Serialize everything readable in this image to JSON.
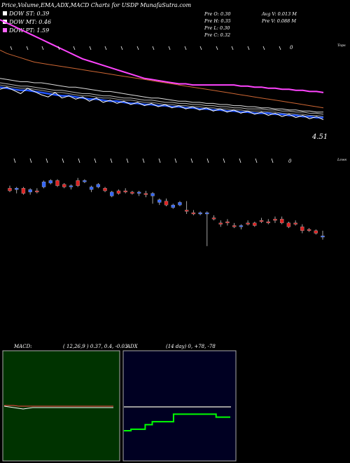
{
  "chart_data": [
    {
      "type": "line",
      "title": "Price,Volume,EMA,ADX,MACD Charts for USDP MunafaSutra.com",
      "legend": [
        {
          "label": "DOW ST: 0.39",
          "color": "#ffffff"
        },
        {
          "label": "DOW MT: 0.46",
          "color": "#ffffff"
        },
        {
          "label": "DOW PT: 1.59",
          "color": "#ff66ff"
        }
      ],
      "stats": [
        "Pre O: 0.30",
        "Pre H: 0.35",
        "Pre L: 0.30",
        "Pre C: 0.32",
        "Avg V: 0.013 M",
        "Pre V: 0.088 M"
      ],
      "price_label": "4.51",
      "axis_note": "Tops",
      "markers": [
        "0"
      ],
      "series": [
        {
          "color": "#ff44ff",
          "values": [
            98,
            95,
            92,
            89,
            86,
            83,
            80,
            77,
            74,
            71,
            68,
            65,
            62,
            60,
            58,
            56,
            54,
            52,
            50,
            48,
            46,
            44,
            43,
            42,
            41,
            40,
            39,
            39,
            38,
            38,
            38,
            38,
            38,
            38,
            38,
            37,
            37,
            36,
            36,
            35,
            35,
            34,
            34,
            33,
            33,
            32,
            32,
            31
          ]
        },
        {
          "color": "#cc6633",
          "values": [
            70,
            67,
            65,
            63,
            61,
            59,
            58,
            57,
            56,
            55,
            54,
            53,
            52,
            51,
            50,
            49,
            48,
            47,
            46,
            45,
            44,
            43,
            42,
            41,
            40,
            39,
            38,
            37,
            36,
            35,
            34,
            33,
            32,
            31,
            30,
            29,
            28,
            27,
            26,
            25,
            24,
            23,
            22,
            21,
            20,
            19,
            18,
            17
          ]
        },
        {
          "color": "#dddddd",
          "values": [
            44,
            43,
            42,
            41,
            41,
            40,
            40,
            39,
            38,
            37,
            36,
            36,
            35,
            34,
            33,
            32,
            32,
            31,
            30,
            29,
            28,
            27,
            26,
            26,
            25,
            24,
            23,
            23,
            22,
            22,
            21,
            21,
            20,
            20,
            19,
            19,
            18,
            18,
            17,
            17,
            16,
            16,
            15,
            15,
            14,
            14,
            13,
            13
          ]
        },
        {
          "color": "#bbbbbb",
          "values": [
            40,
            39,
            38,
            37,
            37,
            36,
            35,
            34,
            33,
            33,
            32,
            31,
            30,
            30,
            29,
            28,
            28,
            27,
            26,
            26,
            25,
            24,
            24,
            23,
            22,
            22,
            21,
            21,
            20,
            20,
            19,
            19,
            18,
            18,
            17,
            17,
            16,
            16,
            16,
            15,
            15,
            14,
            14,
            13,
            13,
            12,
            12,
            11
          ]
        },
        {
          "color": "#999999",
          "values": [
            38,
            37,
            36,
            35,
            35,
            34,
            33,
            32,
            31,
            31,
            30,
            29,
            28,
            28,
            27,
            26,
            26,
            25,
            24,
            24,
            23,
            22,
            22,
            21,
            20,
            20,
            19,
            19,
            18,
            18,
            17,
            17,
            16,
            16,
            15,
            15,
            14,
            14,
            14,
            13,
            13,
            12,
            12,
            11,
            11,
            10,
            10,
            9
          ]
        },
        {
          "color": "#2255ff",
          "values": [
            36,
            35,
            34,
            33,
            33,
            32,
            31,
            30,
            29,
            28,
            28,
            27,
            26,
            25,
            25,
            24,
            23,
            23,
            22,
            21,
            21,
            20,
            20,
            19,
            19,
            18,
            18,
            17,
            17,
            16,
            16,
            15,
            15,
            14,
            14,
            13,
            13,
            12,
            12,
            12,
            11,
            11,
            10,
            10,
            9,
            9,
            8,
            8
          ]
        },
        {
          "color": "#ffffff",
          "values": [
            34,
            36,
            33,
            30,
            35,
            32,
            29,
            27,
            31,
            26,
            28,
            25,
            27,
            23,
            26,
            22,
            24,
            21,
            23,
            20,
            22,
            19,
            21,
            18,
            20,
            17,
            19,
            16,
            18,
            15,
            17,
            14,
            16,
            13,
            15,
            12,
            14,
            11,
            13,
            10,
            12,
            9,
            11,
            8,
            10,
            7,
            9,
            6
          ]
        }
      ]
    },
    {
      "type": "candlestick",
      "axis_note": "Lows",
      "markers": [
        "0"
      ],
      "candles": [
        [
          60,
          62,
          57,
          58
        ],
        [
          59,
          61,
          56,
          60
        ],
        [
          60,
          61,
          55,
          56
        ],
        [
          57,
          60,
          55,
          59
        ],
        [
          58,
          60,
          56,
          57
        ],
        [
          61,
          66,
          60,
          65
        ],
        [
          64,
          67,
          63,
          66
        ],
        [
          66,
          67,
          61,
          62
        ],
        [
          63,
          64,
          60,
          61
        ],
        [
          61,
          63,
          59,
          62
        ],
        [
          66,
          68,
          61,
          62
        ],
        [
          65,
          67,
          64,
          66
        ],
        [
          59,
          62,
          57,
          61
        ],
        [
          61,
          64,
          60,
          63
        ],
        [
          60,
          61,
          57,
          58
        ],
        [
          54,
          58,
          53,
          57
        ],
        [
          58,
          59,
          55,
          56
        ],
        [
          58,
          60,
          56,
          57
        ],
        [
          57,
          58,
          55,
          56
        ],
        [
          56,
          58,
          54,
          57
        ],
        [
          56,
          58,
          53,
          55
        ],
        [
          54,
          57,
          48,
          56
        ],
        [
          49,
          52,
          47,
          51
        ],
        [
          50,
          52,
          46,
          47
        ],
        [
          45,
          48,
          44,
          47
        ],
        [
          47,
          50,
          46,
          49
        ],
        [
          43,
          50,
          40,
          42
        ],
        [
          41,
          43,
          39,
          40
        ],
        [
          40,
          42,
          39,
          41
        ],
        [
          40,
          42,
          15,
          41
        ],
        [
          37,
          39,
          35,
          36
        ],
        [
          33,
          35,
          30,
          32
        ],
        [
          34,
          36,
          31,
          33
        ],
        [
          31,
          33,
          29,
          30
        ],
        [
          30,
          32,
          28,
          31
        ],
        [
          33,
          35,
          31,
          32
        ],
        [
          33,
          34,
          30,
          31
        ],
        [
          35,
          37,
          33,
          34
        ],
        [
          34,
          36,
          32,
          33
        ],
        [
          36,
          38,
          33,
          35
        ],
        [
          36,
          38,
          32,
          33
        ],
        [
          33,
          34,
          29,
          30
        ],
        [
          33,
          35,
          31,
          32
        ],
        [
          30,
          32,
          25,
          27
        ],
        [
          28,
          29,
          26,
          27
        ],
        [
          27,
          28,
          24,
          25
        ],
        [
          23,
          27,
          20,
          22
        ]
      ]
    },
    {
      "type": "line",
      "title": "MACD:",
      "params": "( 12,26,9 ) 0.37, 0.4, -0.03",
      "series": [
        {
          "color": "#ffffff",
          "values": [
            0.02,
            0.01,
            0.0,
            -0.01,
            -0.02,
            -0.01,
            0.0,
            0.0,
            0.0,
            0.0,
            0.0,
            0.0,
            0.0,
            0.0,
            0.0,
            0.0,
            0.0,
            0.0,
            0.0,
            0.0,
            0.0,
            0.0,
            0.0,
            0.0
          ]
        },
        {
          "color": "#ff4444",
          "values": [
            0.03,
            0.03,
            0.03,
            0.02,
            0.02,
            0.02,
            0.02,
            0.02,
            0.02,
            0.02,
            0.02,
            0.02,
            0.02,
            0.02,
            0.02,
            0.02,
            0.02,
            0.02,
            0.02,
            0.02,
            0.02,
            0.02,
            0.02,
            0.02
          ]
        }
      ]
    },
    {
      "type": "line",
      "title": "ADX",
      "params": "(14 day) 0, +78, -78",
      "series": [
        {
          "color": "#999999",
          "values": [
            78,
            78,
            78,
            78,
            78,
            78,
            78,
            78,
            78,
            78,
            78,
            78,
            78,
            78,
            78,
            78
          ]
        },
        {
          "color": "#00ff00",
          "values": [
            0,
            5,
            5,
            20,
            30,
            30,
            30,
            55,
            55,
            55,
            55,
            55,
            55,
            45,
            45,
            45
          ]
        }
      ]
    }
  ]
}
